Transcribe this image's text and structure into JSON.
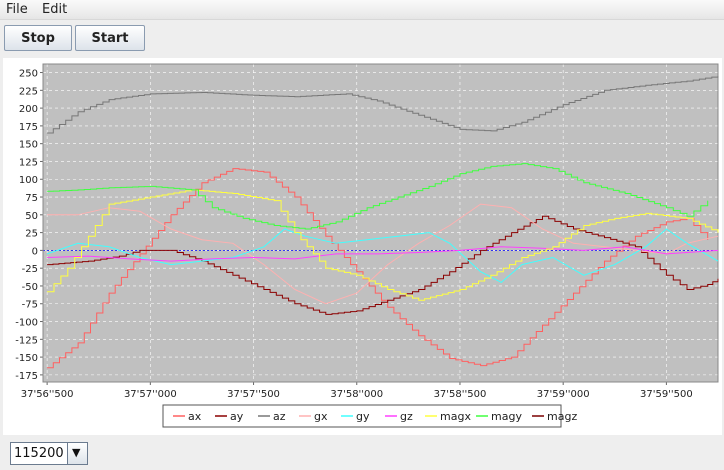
{
  "menu": {
    "items": [
      "File",
      "Edit"
    ]
  },
  "toolbar": {
    "stop_label": "Stop",
    "start_label": "Start"
  },
  "baud": {
    "selected": "115200",
    "arrow_icon": "▼"
  },
  "chart_data": {
    "type": "line",
    "x_ticks": [
      "37'56''500",
      "37'57''000",
      "37'57''500",
      "37'58''000",
      "37'58''500",
      "37'59''000",
      "37'59''500"
    ],
    "x_tick_pos": [
      0,
      0.5,
      1,
      1.5,
      2,
      2.5,
      3
    ],
    "xlim": [
      -0.02,
      3.25
    ],
    "ylim": [
      -185,
      262
    ],
    "yticks": [
      250,
      225,
      200,
      175,
      150,
      125,
      100,
      75,
      50,
      25,
      0,
      -25,
      -50,
      -75,
      -100,
      -125,
      -150,
      -175
    ],
    "grid": true,
    "legend_position": "bottom",
    "background": "#c0c0c0",
    "series": [
      {
        "name": "ax",
        "color": "#ff6060",
        "step": true,
        "points": [
          [
            0,
            -165
          ],
          [
            0.15,
            -130
          ],
          [
            0.3,
            -60
          ],
          [
            0.45,
            -5
          ],
          [
            0.6,
            50
          ],
          [
            0.75,
            95
          ],
          [
            0.9,
            115
          ],
          [
            1.05,
            110
          ],
          [
            1.2,
            75
          ],
          [
            1.35,
            20
          ],
          [
            1.5,
            -30
          ],
          [
            1.65,
            -80
          ],
          [
            1.8,
            -120
          ],
          [
            1.95,
            -152
          ],
          [
            2.1,
            -162
          ],
          [
            2.25,
            -150
          ],
          [
            2.4,
            -105
          ],
          [
            2.55,
            -60
          ],
          [
            2.7,
            -15
          ],
          [
            2.85,
            20
          ],
          [
            3.0,
            40
          ],
          [
            3.1,
            45
          ],
          [
            3.2,
            15
          ]
        ]
      },
      {
        "name": "ay",
        "color": "#8b0000",
        "step": true,
        "points": [
          [
            0,
            -20
          ],
          [
            0.2,
            -15
          ],
          [
            0.35,
            -8
          ],
          [
            0.45,
            0
          ],
          [
            0.6,
            0
          ],
          [
            0.75,
            -15
          ],
          [
            0.9,
            -35
          ],
          [
            1.05,
            -55
          ],
          [
            1.2,
            -75
          ],
          [
            1.35,
            -90
          ],
          [
            1.5,
            -85
          ],
          [
            1.65,
            -70
          ],
          [
            1.8,
            -55
          ],
          [
            1.95,
            -30
          ],
          [
            2.1,
            0
          ],
          [
            2.25,
            25
          ],
          [
            2.4,
            48
          ],
          [
            2.55,
            30
          ],
          [
            2.7,
            18
          ],
          [
            2.85,
            5
          ],
          [
            3.0,
            -35
          ],
          [
            3.1,
            -55
          ],
          [
            3.2,
            -48
          ],
          [
            3.25,
            -40
          ]
        ]
      },
      {
        "name": "az",
        "color": "#777777",
        "step": true,
        "points": [
          [
            0,
            165
          ],
          [
            0.15,
            195
          ],
          [
            0.3,
            212
          ],
          [
            0.5,
            220
          ],
          [
            0.75,
            222
          ],
          [
            1.0,
            218
          ],
          [
            1.2,
            216
          ],
          [
            1.45,
            220
          ],
          [
            1.6,
            210
          ],
          [
            1.8,
            190
          ],
          [
            2.0,
            170
          ],
          [
            2.15,
            168
          ],
          [
            2.3,
            180
          ],
          [
            2.5,
            205
          ],
          [
            2.7,
            225
          ],
          [
            2.9,
            232
          ],
          [
            3.1,
            238
          ],
          [
            3.25,
            245
          ]
        ]
      },
      {
        "name": "gx",
        "color": "#ffb0b0",
        "step": false,
        "points": [
          [
            0,
            50
          ],
          [
            0.15,
            50
          ],
          [
            0.3,
            60
          ],
          [
            0.45,
            55
          ],
          [
            0.6,
            30
          ],
          [
            0.75,
            15
          ],
          [
            0.9,
            10
          ],
          [
            1.05,
            -20
          ],
          [
            1.2,
            -55
          ],
          [
            1.35,
            -75
          ],
          [
            1.5,
            -60
          ],
          [
            1.65,
            -20
          ],
          [
            1.8,
            10
          ],
          [
            1.95,
            35
          ],
          [
            2.1,
            65
          ],
          [
            2.25,
            60
          ],
          [
            2.4,
            30
          ],
          [
            2.55,
            10
          ],
          [
            2.7,
            5
          ],
          [
            2.85,
            0
          ],
          [
            3.0,
            -5
          ],
          [
            3.1,
            10
          ],
          [
            3.25,
            20
          ]
        ]
      },
      {
        "name": "gy",
        "color": "#40ffff",
        "step": false,
        "points": [
          [
            0,
            -5
          ],
          [
            0.15,
            10
          ],
          [
            0.3,
            5
          ],
          [
            0.45,
            -10
          ],
          [
            0.6,
            -20
          ],
          [
            0.75,
            -15
          ],
          [
            0.9,
            -10
          ],
          [
            1.05,
            5
          ],
          [
            1.15,
            30
          ],
          [
            1.25,
            20
          ],
          [
            1.4,
            10
          ],
          [
            1.55,
            15
          ],
          [
            1.7,
            20
          ],
          [
            1.85,
            25
          ],
          [
            1.95,
            10
          ],
          [
            2.1,
            -30
          ],
          [
            2.2,
            -45
          ],
          [
            2.3,
            -20
          ],
          [
            2.45,
            -10
          ],
          [
            2.6,
            -35
          ],
          [
            2.75,
            -20
          ],
          [
            2.9,
            5
          ],
          [
            3.0,
            30
          ],
          [
            3.1,
            10
          ],
          [
            3.25,
            -15
          ]
        ]
      },
      {
        "name": "gz",
        "color": "#ff40ff",
        "step": false,
        "points": [
          [
            0,
            -10
          ],
          [
            0.2,
            -8
          ],
          [
            0.4,
            -12
          ],
          [
            0.6,
            -15
          ],
          [
            0.8,
            -12
          ],
          [
            1.0,
            -10
          ],
          [
            1.2,
            -12
          ],
          [
            1.4,
            -5
          ],
          [
            1.6,
            -5
          ],
          [
            1.8,
            -3
          ],
          [
            2.0,
            0
          ],
          [
            2.2,
            5
          ],
          [
            2.4,
            3
          ],
          [
            2.6,
            0
          ],
          [
            2.8,
            5
          ],
          [
            3.0,
            -5
          ],
          [
            3.25,
            0
          ]
        ]
      },
      {
        "name": "magx",
        "color": "#ffff40",
        "step": true,
        "points": [
          [
            0,
            -58
          ],
          [
            0.1,
            -25
          ],
          [
            0.2,
            20
          ],
          [
            0.3,
            65
          ],
          [
            0.5,
            75
          ],
          [
            0.7,
            85
          ],
          [
            0.9,
            80
          ],
          [
            1.1,
            70
          ],
          [
            1.2,
            25
          ],
          [
            1.35,
            -25
          ],
          [
            1.5,
            -35
          ],
          [
            1.65,
            -55
          ],
          [
            1.8,
            -70
          ],
          [
            2.0,
            -55
          ],
          [
            2.15,
            -35
          ],
          [
            2.3,
            -10
          ],
          [
            2.45,
            5
          ],
          [
            2.6,
            35
          ],
          [
            2.75,
            45
          ],
          [
            2.9,
            52
          ],
          [
            3.1,
            45
          ],
          [
            3.25,
            25
          ]
        ]
      },
      {
        "name": "magy",
        "color": "#40ff40",
        "step": true,
        "points": [
          [
            0,
            83
          ],
          [
            0.15,
            85
          ],
          [
            0.3,
            88
          ],
          [
            0.5,
            90
          ],
          [
            0.7,
            85
          ],
          [
            0.8,
            60
          ],
          [
            0.95,
            45
          ],
          [
            1.1,
            35
          ],
          [
            1.25,
            30
          ],
          [
            1.4,
            40
          ],
          [
            1.55,
            60
          ],
          [
            1.7,
            75
          ],
          [
            1.85,
            90
          ],
          [
            2.0,
            108
          ],
          [
            2.15,
            118
          ],
          [
            2.3,
            122
          ],
          [
            2.45,
            115
          ],
          [
            2.6,
            95
          ],
          [
            2.8,
            80
          ],
          [
            3.0,
            60
          ],
          [
            3.1,
            48
          ],
          [
            3.2,
            70
          ]
        ]
      },
      {
        "name": "magz",
        "color": "#7a0000",
        "step": false,
        "points": []
      }
    ],
    "xlabel": "",
    "ylabel": ""
  }
}
